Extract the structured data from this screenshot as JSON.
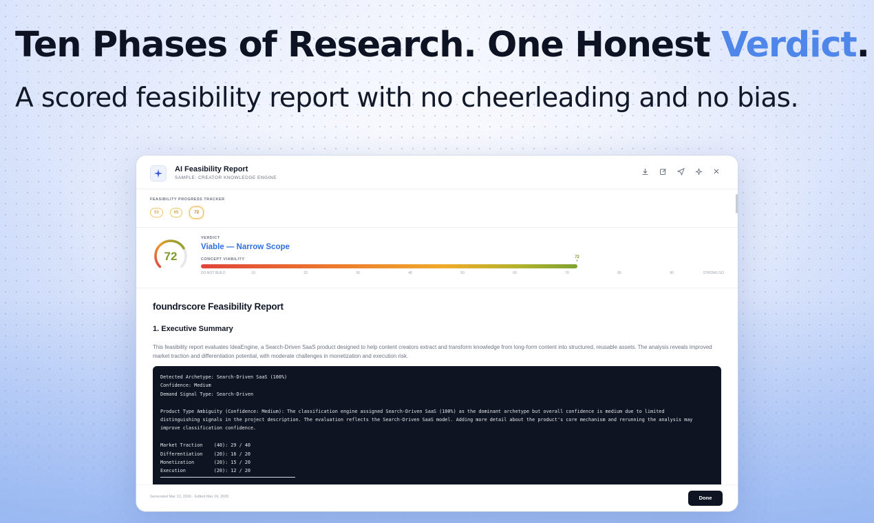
{
  "hero": {
    "title_main": "Ten Phases of Research. One Honest ",
    "title_accent": "Verdict",
    "title_end": ".",
    "subtitle": "A scored feasibility report with no cheerleading and no bias."
  },
  "modal": {
    "title": "AI Feasibility Report",
    "subtitle": "SAMPLE: CREATOR KNOWLEDGE ENGINE",
    "toolbar": [
      "download-icon",
      "edit-icon",
      "send-icon",
      "sparkle-icon",
      "close-icon"
    ]
  },
  "tracker": {
    "label": "FEASIBILITY PROGRESS TRACKER",
    "scores": [
      "53",
      "65",
      "72"
    ]
  },
  "verdict": {
    "score": "72",
    "score_value": 72,
    "label": "VERDICT",
    "value": "Viable — Narrow Scope",
    "viability_label": "CONCEPT VIABILITY",
    "viability_marker": "72",
    "ticks": [
      "DO NOT BUILD",
      "10",
      "20",
      "30",
      "40",
      "50",
      "60",
      "70",
      "80",
      "90",
      "STRONG GO"
    ]
  },
  "report": {
    "title": "foundrscore Feasibility Report",
    "section_title": "1. Executive Summary",
    "section_text": "This feasibility report evaluates IdeaEngine, a Search-Driven SaaS product designed to help content creators extract and transform knowledge from long-form content into structured, reusable assets. The analysis reveals improved market traction and differentiation potential, with moderate challenges in monetization and execution risk.",
    "code_lines": [
      "Detected Archetype: Search-Driven SaaS (100%)",
      "Confidence: Medium",
      "Demand Signal Type: Search-Driven",
      "",
      "Product Type Ambiguity (Confidence: Medium): The classification engine assigned Search-Driven SaaS (100%) as the dominant archetype but overall confidence is medium due to limited",
      "distinguishing signals in the project description. The evaluation reflects the Search-Driven SaaS model. Adding more detail about the product's core mechanism and rerunning the analysis may",
      "improve classification confidence.",
      "",
      "Market Traction    (40): 29 / 40",
      "Differentiation    (20): 16 / 20",
      "Monetization       (20): 15 / 20",
      "Execution          (20): 12 / 20"
    ]
  },
  "footer": {
    "generated": "Generated Mar 10, 2026 · Edited Mar 24, 2026",
    "done_label": "Done"
  },
  "colors": {
    "accent": "#4f86ea",
    "verdict_blue": "#2f6fe0",
    "score_green": "#7c9a2a",
    "code_bg": "#0f1422"
  }
}
